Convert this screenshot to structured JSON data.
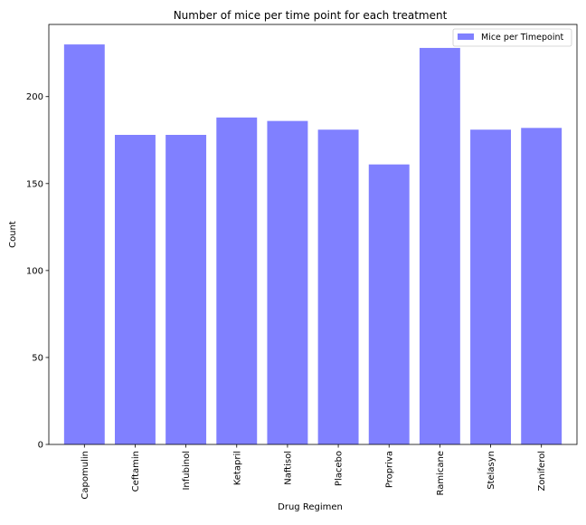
{
  "chart_data": {
    "type": "bar",
    "title": "Number of mice per time point for each treatment",
    "xlabel": "Drug Regimen",
    "ylabel": "Count",
    "categories": [
      "Capomulin",
      "Ceftamin",
      "Infubinol",
      "Ketapril",
      "Naftisol",
      "Placebo",
      "Propriva",
      "Ramicane",
      "Stelasyn",
      "Zoniferol"
    ],
    "series": [
      {
        "name": "Mice per Timepoint",
        "values": [
          230,
          178,
          178,
          188,
          186,
          181,
          161,
          228,
          181,
          182
        ],
        "color": "#8080ff"
      }
    ],
    "ylim": [
      0,
      241.5
    ],
    "yticks": [
      0,
      50,
      100,
      150,
      200
    ],
    "grid": false,
    "legend": "top-right"
  }
}
